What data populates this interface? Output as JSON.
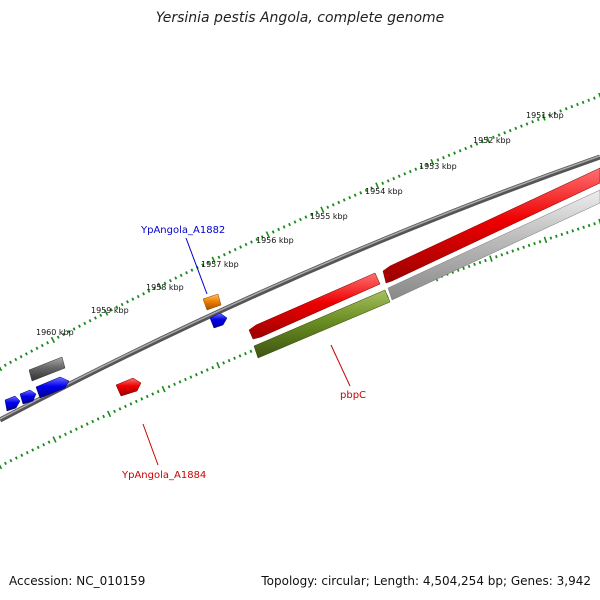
{
  "title": "Yersinia pestis Angola, complete genome",
  "scale_labels": [
    "1951 kbp",
    "1952 kbp",
    "1953 kbp",
    "1954 kbp",
    "1955 kbp",
    "1956 kbp",
    "1957 kbp",
    "1958 kbp",
    "1959 kbp",
    "1960 kbp"
  ],
  "gene_labels": {
    "a1882": "YpAngola_A1882",
    "pbpc": "pbpC",
    "a1884": "YpAngola_A1884"
  },
  "colors": {
    "forward_tick": "#1a8a1a",
    "label_blue": "#0000cc",
    "label_red": "#cc0000",
    "gene_red": "#e00000",
    "gene_olive": "#6b8e23",
    "gene_blue": "#0000ee",
    "gene_orange": "#f08000",
    "gene_grey": "#666666",
    "gene_lightgrey": "#bbbbbb"
  },
  "footer": {
    "accession": "Accession: NC_010159",
    "stats": "Topology: circular; Length: 4,504,254 bp; Genes: 3,942"
  }
}
